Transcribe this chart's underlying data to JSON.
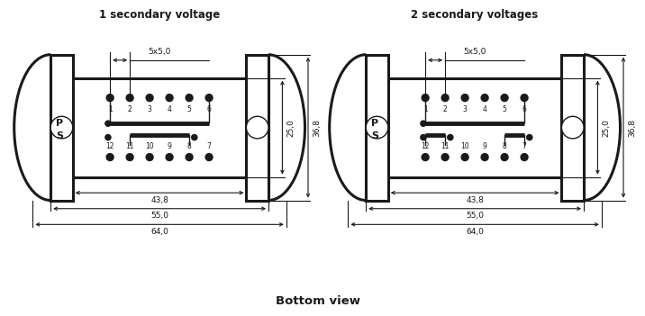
{
  "title1": "1 secondary voltage",
  "title2": "2 secondary voltages",
  "bottom_label": "Bottom view",
  "dim_5x5": "5x5,0",
  "dim_438": "43,8",
  "dim_550": "55,0",
  "dim_640": "64,0",
  "dim_250": "25,0",
  "dim_368": "36,8",
  "pin_labels_top": [
    "1",
    "2",
    "3",
    "4",
    "5",
    "6"
  ],
  "pin_labels_bot": [
    "12",
    "11",
    "10",
    "9",
    "8",
    "7"
  ],
  "label_P": "P",
  "label_S": "S",
  "bg_color": "#ffffff",
  "line_color": "#1a1a1a"
}
